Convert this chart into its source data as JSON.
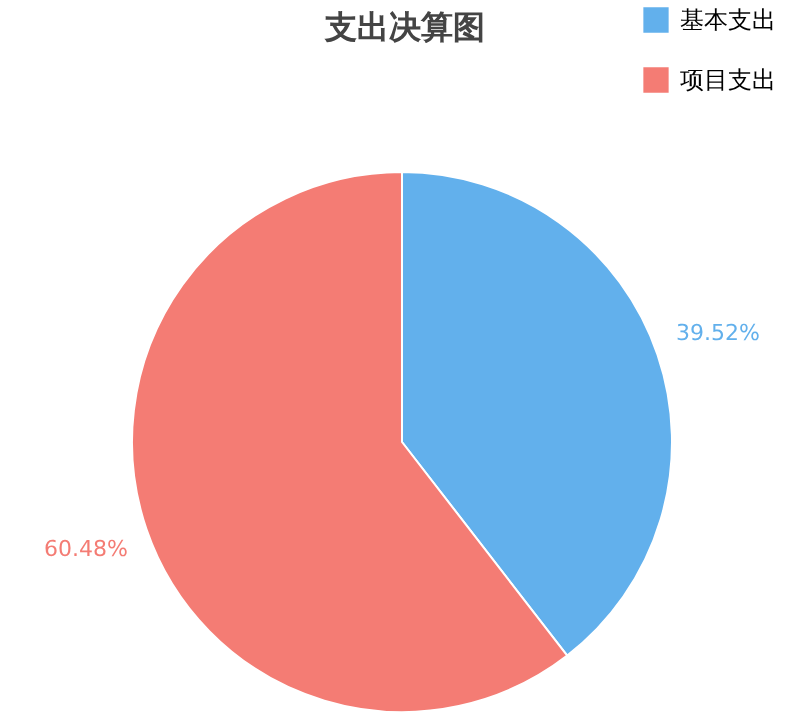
{
  "chart_data": {
    "type": "pie",
    "title": "支出决算图",
    "categories": [
      "基本支出",
      "项目支出"
    ],
    "values": [
      39.52,
      60.48
    ],
    "colors": [
      "#62b0ec",
      "#f47c74"
    ],
    "value_labels": [
      "39.52%",
      "60.48%"
    ],
    "legend": "top right"
  }
}
